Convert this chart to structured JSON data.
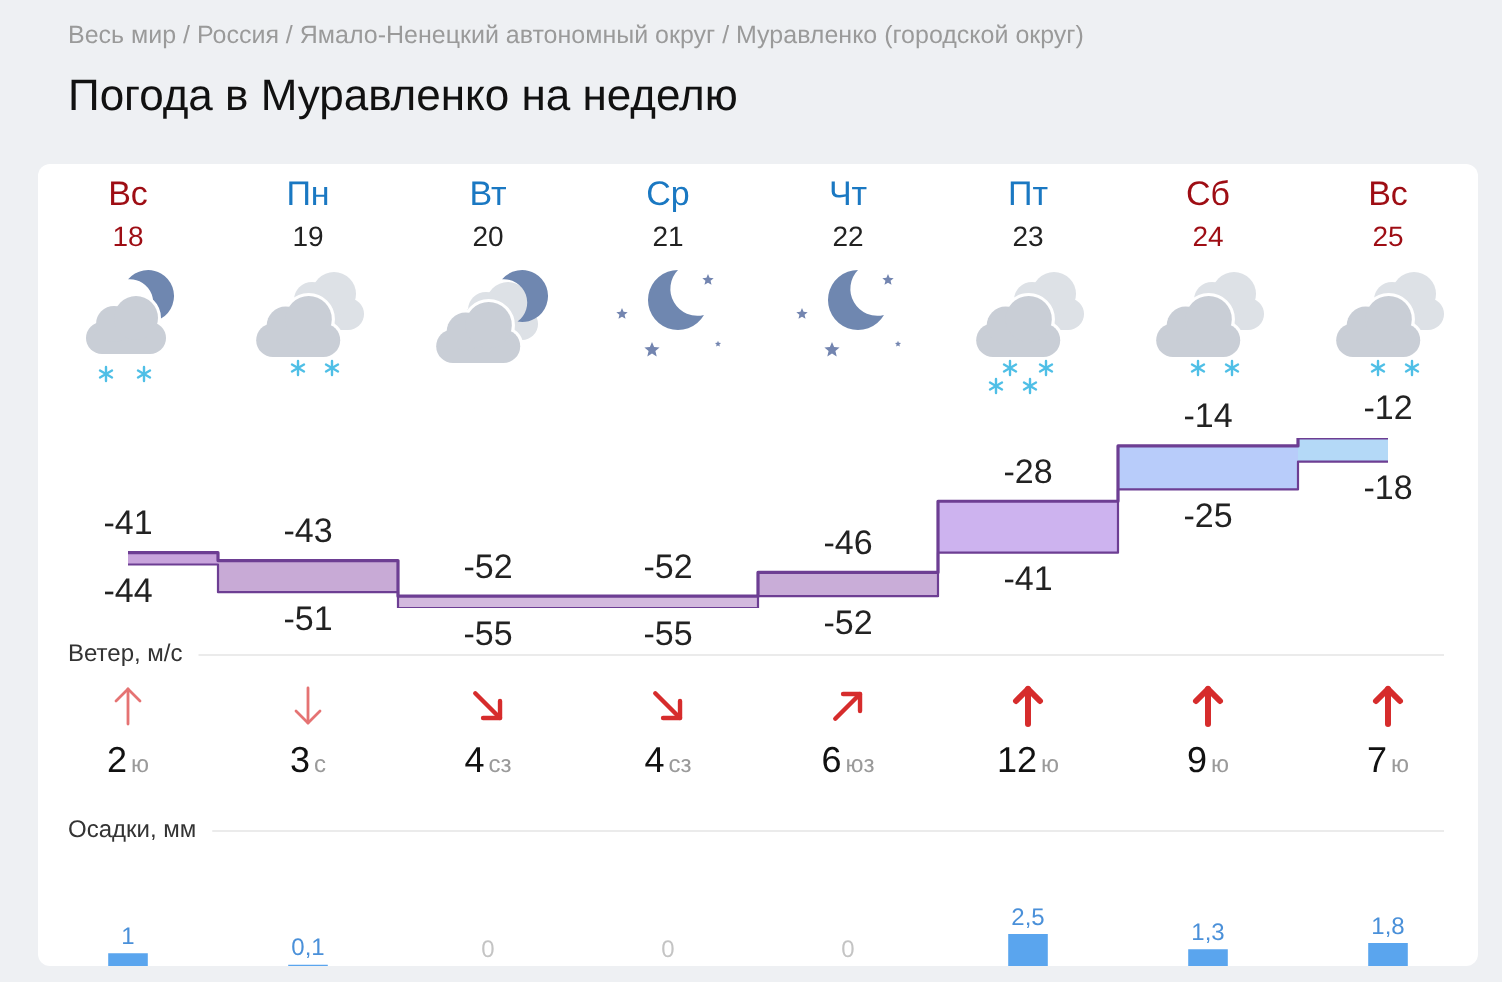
{
  "chart_data": [
    {
      "type": "step",
      "title": "Погода в Муравленко на неделю",
      "annotations": [
        "Весь мир / Россия / Ямало-Ненецкий автономный округ / Муравленко (городской округ)"
      ],
      "categories": [
        "Вс 18",
        "Пн 19",
        "Вт 20",
        "Ср 21",
        "Чт 22",
        "Пт 23",
        "Сб 24",
        "Вс 25"
      ],
      "series": [
        {
          "values": [
            -41,
            -43,
            -52,
            -52,
            -46,
            -28,
            -14,
            -12
          ],
          "lower": [
            -44,
            -51,
            -55,
            -55,
            -52,
            -41,
            -25,
            -18
          ],
          "upper": [
            -41,
            -43,
            -52,
            -52,
            -46,
            -28,
            -14,
            -12
          ],
          "color": "#6d3e93",
          "colors": [
            "#c8a4dc",
            "#c8aad6",
            "#d3b9de",
            "#d3b9de",
            "#c9add8",
            "#cdb3ef",
            "#b8ccfa",
            "#b4d9f7"
          ]
        },
        {
          "values": [
            -44,
            -51,
            -55,
            -55,
            -52,
            -41,
            -25,
            -18
          ],
          "color": "#6d3e93"
        }
      ],
      "data_labels": true,
      "tick_labels": "x"
    },
    {
      "type": "other",
      "title": "Ветер, м/с",
      "values": [
        2,
        3,
        4,
        4,
        6,
        12,
        9,
        7
      ],
      "data_labels": true,
      "annotations": [
        "ю",
        "с",
        "сз",
        "сз",
        "юз",
        "ю",
        "ю",
        "ю"
      ]
    },
    {
      "type": "bar",
      "title": "Осадки, мм",
      "categories": [
        null,
        null,
        null,
        null,
        null,
        null,
        null,
        null
      ],
      "values": [
        1,
        0.1,
        0,
        0,
        0,
        2.5,
        1.3,
        1.8
      ],
      "color": "#5aa5ee",
      "value_labels": [
        "1",
        "0,1",
        "0",
        "0",
        "0",
        "2,5",
        "1,3",
        "1,8"
      ]
    }
  ]
}
